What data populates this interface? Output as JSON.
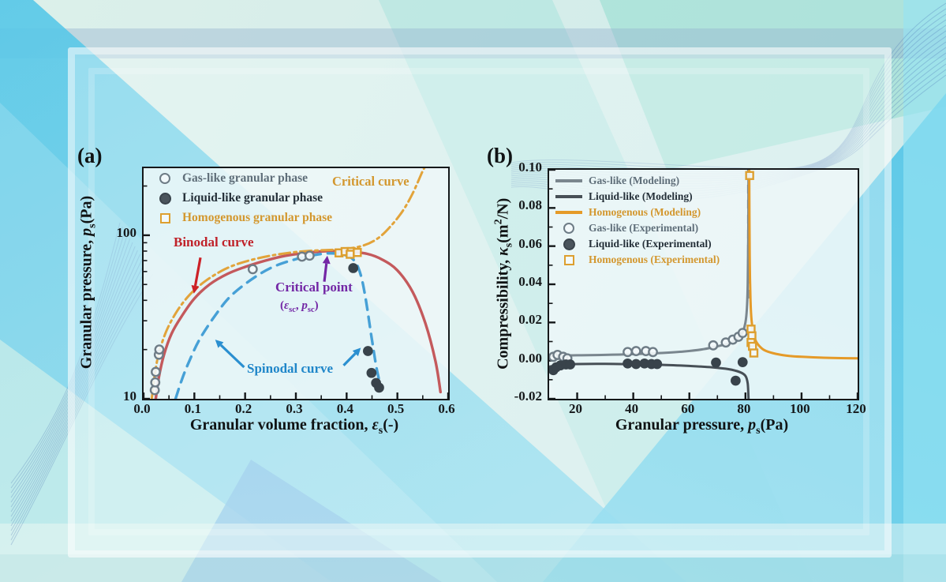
{
  "figure": {
    "panel_a_label": "(a)",
    "panel_b_label": "(b)"
  },
  "panel_a": {
    "xlabel": {
      "prefix": "Granular volume fraction, ",
      "symbol": "ε",
      "subscript": "s",
      "suffix": "(-)"
    },
    "ylabel": {
      "prefix": "Granular pressure, ",
      "symbol": "p",
      "subscript": "s",
      "suffix": "(Pa)"
    },
    "legend": [
      {
        "label": "Gas-like granular phase",
        "marker": "open-circle",
        "color": "#6e7c86"
      },
      {
        "label": "Liquid-like granular phase",
        "marker": "filled-circle",
        "color": "#39434b"
      },
      {
        "label": "Homogenous granular phase",
        "marker": "open-square",
        "color": "#dd9f2f"
      }
    ],
    "annotations": {
      "critical_curve": "Critical curve",
      "binodal_curve": "Binodal curve",
      "critical_point": "Critical point",
      "critical_point_coords": {
        "pre": "(",
        "sym1": "ε",
        "sub1": "sc",
        "mid": ", ",
        "sym2": "p",
        "sub2": "sc",
        "post": ")"
      },
      "spinodal_curve": "Spinodal curve"
    }
  },
  "panel_b": {
    "xlabel": {
      "prefix": "Granular pressure, ",
      "symbol": "p",
      "subscript": "s",
      "suffix": "(Pa)"
    },
    "ylabel": {
      "prefix": "Compressibility, ",
      "symbol": "κ",
      "subscript": "s",
      "suffix_pre": "(m",
      "sup": "2",
      "suffix_post": "/N)"
    },
    "legend": [
      {
        "label": "Gas-like (Modeling)",
        "marker": "line",
        "color": "#7a868e"
      },
      {
        "label": "Liquid-like (Modeling)",
        "marker": "line",
        "color": "#474f56"
      },
      {
        "label": "Homogenous (Modeling)",
        "marker": "line",
        "color": "#e59a28"
      },
      {
        "label": "Gas-like (Experimental)",
        "marker": "open-circle",
        "color": "#6e7c86"
      },
      {
        "label": "Liquid-like (Experimental)",
        "marker": "filled-circle",
        "color": "#39434b"
      },
      {
        "label": "Homogenous (Experimental)",
        "marker": "open-square",
        "color": "#dd9f2f"
      }
    ]
  },
  "chart_data": [
    {
      "id": "a",
      "type": "line+scatter",
      "title": "Granular phase diagram: pressure vs volume fraction",
      "x_axis": {
        "label": "Granular volume fraction, εs(-)",
        "scale": "linear",
        "range": [
          0,
          0.6
        ],
        "major": [
          0,
          0.1,
          0.2,
          0.3,
          0.4,
          0.5,
          0.6
        ],
        "major_labels": [
          "0.0",
          "0.1",
          "0.2",
          "0.3",
          "0.4",
          "0.5",
          "0.6"
        ],
        "minor": [
          0.05,
          0.15,
          0.25,
          0.35,
          0.45,
          0.55
        ]
      },
      "y_axis": {
        "label": "Granular pressure, ps(Pa)",
        "scale": "log",
        "range": [
          10,
          257
        ],
        "major": [
          10,
          100
        ],
        "major_labels": [
          "10",
          "100"
        ],
        "minor": [
          20,
          30,
          40,
          50,
          60,
          70,
          80,
          90,
          200
        ]
      },
      "series": [
        {
          "name": "Binodal curve",
          "kind": "line",
          "style": "solid",
          "color": "#c4595c",
          "width": 3.4,
          "points": [
            [
              0.024,
              10
            ],
            [
              0.03,
              13.5
            ],
            [
              0.04,
              18.5
            ],
            [
              0.055,
              25
            ],
            [
              0.075,
              32
            ],
            [
              0.1,
              41
            ],
            [
              0.13,
              50
            ],
            [
              0.165,
              58
            ],
            [
              0.2,
              64
            ],
            [
              0.24,
              70
            ],
            [
              0.28,
              75
            ],
            [
              0.32,
              78
            ],
            [
              0.36,
              80
            ],
            [
              0.4,
              79.5
            ],
            [
              0.44,
              77
            ],
            [
              0.47,
              71
            ],
            [
              0.5,
              61
            ],
            [
              0.53,
              45
            ],
            [
              0.555,
              29
            ],
            [
              0.575,
              17
            ],
            [
              0.585,
              11
            ]
          ]
        },
        {
          "name": "Spinodal curve",
          "kind": "line",
          "style": "dashed",
          "color": "#46a0d6",
          "width": 3.4,
          "points": [
            [
              0.063,
              10
            ],
            [
              0.075,
              13
            ],
            [
              0.09,
              17
            ],
            [
              0.11,
              23
            ],
            [
              0.14,
              32
            ],
            [
              0.17,
              42
            ],
            [
              0.21,
              53
            ],
            [
              0.25,
              63
            ],
            [
              0.29,
              70
            ],
            [
              0.33,
              75
            ],
            [
              0.365,
              77.5
            ],
            [
              0.395,
              76
            ],
            [
              0.415,
              70
            ],
            [
              0.428,
              57
            ],
            [
              0.438,
              40
            ],
            [
              0.448,
              25
            ],
            [
              0.458,
              16
            ],
            [
              0.464,
              13
            ]
          ]
        },
        {
          "name": "Critical curve",
          "kind": "line",
          "style": "dashdot",
          "color": "#e2a33a",
          "width": 3,
          "points": [
            [
              0.016,
              10
            ],
            [
              0.022,
              14
            ],
            [
              0.03,
              19
            ],
            [
              0.045,
              26
            ],
            [
              0.065,
              34
            ],
            [
              0.09,
              43
            ],
            [
              0.12,
              52
            ],
            [
              0.16,
              62
            ],
            [
              0.2,
              69
            ],
            [
              0.25,
              75
            ],
            [
              0.3,
              79
            ],
            [
              0.35,
              81
            ],
            [
              0.39,
              82
            ],
            [
              0.43,
              86
            ],
            [
              0.46,
              95
            ],
            [
              0.485,
              112
            ],
            [
              0.51,
              140
            ],
            [
              0.53,
              180
            ],
            [
              0.548,
              240
            ],
            [
              0.553,
              258
            ]
          ]
        },
        {
          "name": "Gas-like granular phase",
          "kind": "scatter",
          "marker": "open-circle",
          "color": "#6e7c86",
          "points": [
            [
              0.022,
              11.3
            ],
            [
              0.023,
              12.6
            ],
            [
              0.024,
              14.6
            ],
            [
              0.03,
              18.6
            ],
            [
              0.031,
              20
            ],
            [
              0.215,
              62
            ],
            [
              0.312,
              74
            ],
            [
              0.327,
              75
            ]
          ]
        },
        {
          "name": "Liquid-like granular phase",
          "kind": "scatter",
          "marker": "filled-circle",
          "color": "#39434b",
          "points": [
            [
              0.413,
              63
            ],
            [
              0.442,
              19.6
            ],
            [
              0.449,
              14.4
            ],
            [
              0.458,
              12.5
            ],
            [
              0.464,
              11.7
            ]
          ]
        },
        {
          "name": "Homogenous granular phase",
          "kind": "scatter",
          "marker": "open-square",
          "color": "#dd9f2f",
          "points": [
            [
              0.385,
              78
            ],
            [
              0.397,
              79.5
            ],
            [
              0.409,
              79.5
            ],
            [
              0.407,
              76.5
            ],
            [
              0.421,
              78.5
            ]
          ]
        }
      ],
      "arrows": [
        {
          "from": [
            0.112,
            73
          ],
          "to": [
            0.099,
            44
          ],
          "color": "#cc2127"
        },
        {
          "from": [
            0.356,
            52
          ],
          "to": [
            0.362,
            75
          ],
          "color": "#7327a5"
        },
        {
          "from": [
            0.198,
            15.6
          ],
          "to": [
            0.141,
            23
          ],
          "color": "#2a8fd0"
        },
        {
          "from": [
            0.394,
            16
          ],
          "to": [
            0.428,
            20.5
          ],
          "color": "#2a8fd0"
        }
      ]
    },
    {
      "id": "b",
      "type": "line+scatter",
      "title": "Compressibility vs granular pressure",
      "x_axis": {
        "label": "Granular pressure, ps(Pa)",
        "scale": "linear",
        "range": [
          10,
          120
        ],
        "major": [
          20,
          40,
          60,
          80,
          100,
          120
        ],
        "major_labels": [
          "20",
          "40",
          "60",
          "80",
          "100",
          "120"
        ],
        "minor": [
          30,
          50,
          70,
          90,
          110
        ]
      },
      "y_axis": {
        "label": "Compressibility, κs(m2/N)",
        "scale": "linear",
        "range": [
          -0.02,
          0.1
        ],
        "major": [
          -0.02,
          0,
          0.02,
          0.04,
          0.06,
          0.08,
          0.1
        ],
        "major_labels": [
          "-0.02",
          "0.00",
          "0.02",
          "0.04",
          "0.06",
          "0.08",
          "0.10"
        ],
        "minor": [
          -0.01,
          0.01,
          0.03,
          0.05,
          0.07,
          0.09
        ]
      },
      "critical_pressure_line": {
        "x": 81,
        "y_from": 0.1,
        "y_to": 0.03,
        "style": "dashed",
        "color": "#8a949b"
      },
      "series": [
        {
          "name": "Gas-like (Modeling)",
          "kind": "line",
          "style": "solid",
          "color": "#7a868e",
          "width": 3,
          "points": [
            [
              10,
              0.0025
            ],
            [
              20,
              0.0028
            ],
            [
              30,
              0.003
            ],
            [
              40,
              0.0034
            ],
            [
              50,
              0.004
            ],
            [
              58,
              0.0048
            ],
            [
              65,
              0.006
            ],
            [
              70,
              0.0075
            ],
            [
              74,
              0.009
            ],
            [
              77,
              0.0115
            ],
            [
              79,
              0.015
            ],
            [
              80,
              0.02
            ],
            [
              80.5,
              0.027
            ],
            [
              80.8,
              0.04
            ],
            [
              81,
              0.065
            ],
            [
              81.1,
              0.1
            ]
          ]
        },
        {
          "name": "Liquid-like (Modeling)",
          "kind": "line",
          "style": "solid",
          "color": "#474f56",
          "width": 3,
          "points": [
            [
              10,
              -0.0032
            ],
            [
              14,
              -0.0022
            ],
            [
              20,
              -0.0018
            ],
            [
              30,
              -0.0017
            ],
            [
              40,
              -0.0019
            ],
            [
              50,
              -0.0022
            ],
            [
              60,
              -0.0028
            ],
            [
              68,
              -0.0035
            ],
            [
              74,
              -0.0045
            ],
            [
              78,
              -0.006
            ],
            [
              80,
              -0.008
            ],
            [
              80.8,
              -0.012
            ],
            [
              81.1,
              -0.02
            ],
            [
              81.15,
              -0.023
            ]
          ]
        },
        {
          "name": "Homogenous (Modeling)",
          "kind": "line",
          "style": "solid",
          "color": "#e59a28",
          "width": 3,
          "points": [
            [
              81.35,
              0.1
            ],
            [
              81.5,
              0.055
            ],
            [
              81.8,
              0.032
            ],
            [
              82.2,
              0.021
            ],
            [
              83,
              0.0135
            ],
            [
              84,
              0.0095
            ],
            [
              86,
              0.0062
            ],
            [
              88,
              0.0047
            ],
            [
              92,
              0.0032
            ],
            [
              96,
              0.0024
            ],
            [
              100,
              0.002
            ],
            [
              108,
              0.0015
            ],
            [
              114,
              0.0013
            ],
            [
              120,
              0.0012
            ]
          ]
        },
        {
          "name": "Gas-like (Experimental)",
          "kind": "scatter",
          "marker": "open-circle",
          "color": "#6e7c86",
          "points": [
            [
              11.5,
              0.002
            ],
            [
              13,
              0.003
            ],
            [
              15,
              0.002
            ],
            [
              16.5,
              0.0012
            ],
            [
              38,
              0.0045
            ],
            [
              41,
              0.005
            ],
            [
              44.5,
              0.005
            ],
            [
              47,
              0.0045
            ],
            [
              68.5,
              0.008
            ],
            [
              73,
              0.0095
            ],
            [
              75.5,
              0.011
            ],
            [
              77.5,
              0.0125
            ],
            [
              79,
              0.0145
            ]
          ]
        },
        {
          "name": "Liquid-like (Experimental)",
          "kind": "scatter",
          "marker": "filled-circle",
          "color": "#39434b",
          "points": [
            [
              11.5,
              -0.005
            ],
            [
              12.5,
              -0.0035
            ],
            [
              14,
              -0.0025
            ],
            [
              16,
              -0.002
            ],
            [
              17.5,
              -0.002
            ],
            [
              38,
              -0.0015
            ],
            [
              41,
              -0.0018
            ],
            [
              44,
              -0.0015
            ],
            [
              46.5,
              -0.0018
            ],
            [
              48.5,
              -0.0018
            ],
            [
              69.5,
              -0.001
            ],
            [
              76.5,
              -0.0105
            ],
            [
              79,
              -0.0008
            ]
          ]
        },
        {
          "name": "Homogenous (Experimental)",
          "kind": "scatter",
          "marker": "open-square",
          "color": "#dd9f2f",
          "points": [
            [
              81.5,
              0.097
            ],
            [
              82,
              0.0165
            ],
            [
              82.3,
              0.013
            ],
            [
              82,
              0.0095
            ],
            [
              82.5,
              0.0075
            ],
            [
              83,
              0.004
            ]
          ]
        }
      ],
      "arrows": []
    }
  ]
}
